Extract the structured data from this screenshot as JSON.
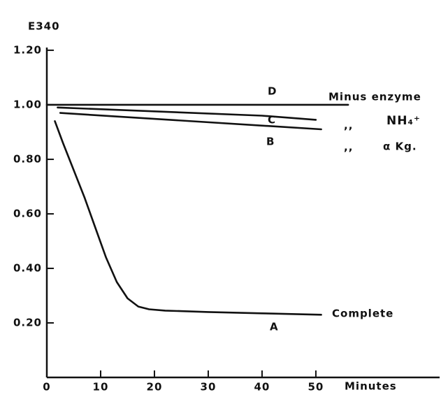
{
  "chart_data": {
    "type": "line",
    "y_label": "E340",
    "x_label": "Minutes",
    "xlim": [
      0,
      73
    ],
    "ylim": [
      0,
      1.21
    ],
    "xticks": [
      0,
      10,
      20,
      30,
      40,
      50
    ],
    "yticks": [
      {
        "value": 0.2,
        "label": "0.20"
      },
      {
        "value": 0.4,
        "label": "0.40"
      },
      {
        "value": 0.6,
        "label": "0.60"
      },
      {
        "value": 0.8,
        "label": "0.80"
      },
      {
        "value": 1.0,
        "label": "1.00"
      },
      {
        "value": 1.2,
        "label": "1.20"
      }
    ],
    "color": "#111111",
    "series": [
      {
        "name": "A",
        "x": [
          1.5,
          3,
          5,
          7,
          9,
          11,
          13,
          15,
          17,
          19,
          22,
          30,
          40,
          51
        ],
        "values": [
          0.94,
          0.86,
          0.76,
          0.66,
          0.55,
          0.44,
          0.35,
          0.29,
          0.26,
          0.25,
          0.245,
          0.24,
          0.235,
          0.23
        ]
      },
      {
        "name": "B",
        "x": [
          2.5,
          51
        ],
        "values": [
          0.97,
          0.91
        ]
      },
      {
        "name": "C",
        "x": [
          2,
          40,
          50
        ],
        "values": [
          0.99,
          0.96,
          0.945
        ]
      },
      {
        "name": "D",
        "x": [
          0,
          56
        ],
        "values": [
          1.0,
          1.0
        ]
      }
    ],
    "annotations": [
      "Minus enzyme",
      ",,",
      "NH₄⁺",
      ",,",
      "α Kg.",
      "Complete"
    ]
  }
}
